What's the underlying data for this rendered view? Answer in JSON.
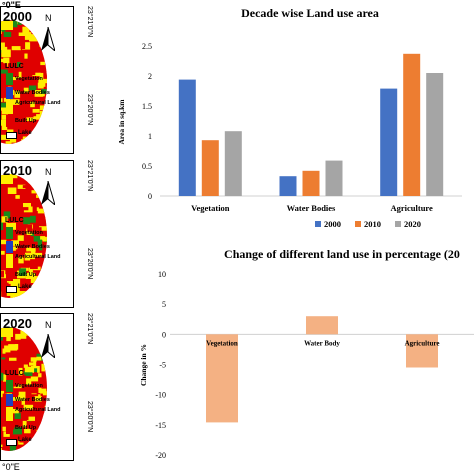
{
  "maps": [
    {
      "year": "2000",
      "top_lat": "23°21'0\"N",
      "mid_lat": "23°20'0\"N",
      "top_lon": "°0\"E"
    },
    {
      "year": "2010",
      "top_lat": "23°21'0\"N",
      "mid_lat": "23°20'0\"N"
    },
    {
      "year": "2020",
      "top_lat": "23°21'0\"N",
      "mid_lat": "23°20'0\"N",
      "bottom_lon": "°0\"E"
    }
  ],
  "map_legend": {
    "title": "LULC",
    "north": "N",
    "items": [
      {
        "label": "Vegetation",
        "color": "#1a8a1a"
      },
      {
        "label": "Water Bodies",
        "color": "#1f3fbf"
      },
      {
        "label": "Agricultural Land",
        "color": "#ffee00"
      },
      {
        "label": "Built Up",
        "color": "#e00000"
      }
    ],
    "lake": "Lake"
  },
  "chart_data": [
    {
      "type": "bar",
      "title": "Decade wise Land use area",
      "ylabel": "Area in sq.km",
      "categories": [
        "Vegetation",
        "Water Bodies",
        "Agriculture"
      ],
      "series": [
        {
          "name": "2000",
          "color": "#4472c4",
          "values": [
            1.94,
            0.33,
            1.79
          ]
        },
        {
          "name": "2010",
          "color": "#ed7d31",
          "values": [
            0.93,
            0.42,
            2.37
          ]
        },
        {
          "name": "2020",
          "color": "#a5a5a5",
          "values": [
            1.08,
            0.59,
            2.05
          ]
        }
      ],
      "ylim": [
        0,
        2.5
      ],
      "yticks": [
        "0",
        "0.5",
        "1",
        "1.5",
        "2",
        "2.5"
      ],
      "legend": "bottom",
      "grid": false
    },
    {
      "type": "bar",
      "title": "Change of different land use in percentage (20",
      "ylabel": "Change in %",
      "categories": [
        "Vegetation",
        "Water Body",
        "Agriculture"
      ],
      "values": [
        -14.6,
        3.0,
        -5.5
      ],
      "color": "#f4b183",
      "ylim": [
        -20,
        10
      ],
      "yticks": [
        "-20",
        "-15",
        "-10",
        "-5",
        "0",
        "5",
        "10"
      ],
      "grid": false
    }
  ]
}
